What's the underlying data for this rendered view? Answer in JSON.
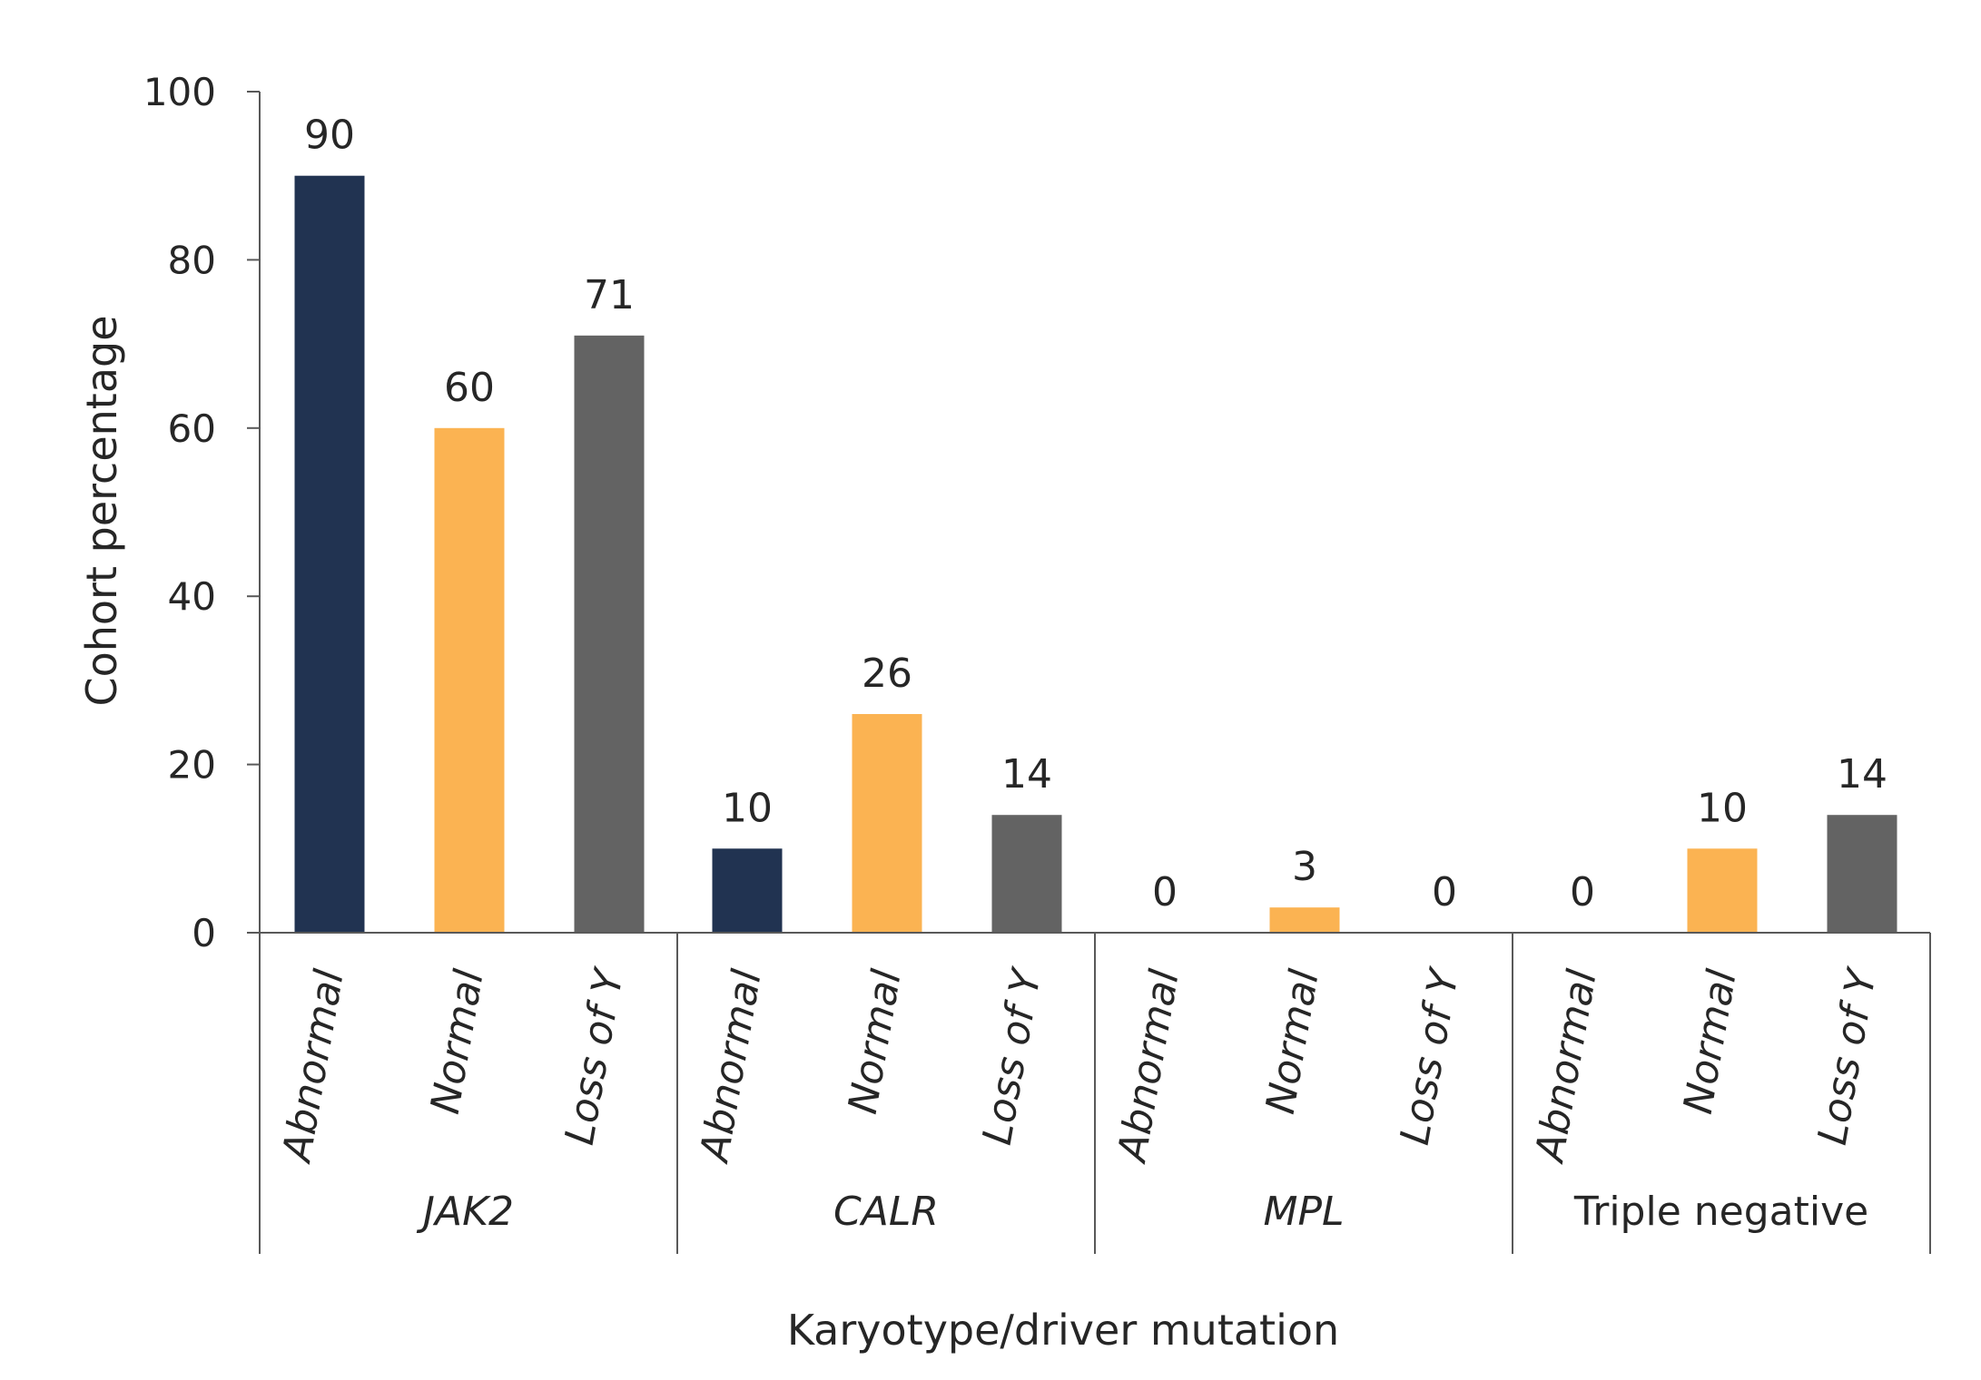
{
  "chart_data": {
    "type": "bar",
    "xlabel": "Karyotype/driver mutation",
    "ylabel": "Cohort percentage",
    "ylim": [
      0,
      100
    ],
    "yticks": [
      0,
      20,
      40,
      60,
      80,
      100
    ],
    "grid": false,
    "legend": "none",
    "colors": {
      "Abnormal": "#213351",
      "Normal": "#fbb352",
      "Loss of Y": "#636363"
    },
    "groups": [
      {
        "name": "JAK2",
        "italic": true,
        "bars": [
          {
            "category": "Abnormal",
            "value": 90
          },
          {
            "category": "Normal",
            "value": 60
          },
          {
            "category": "Loss of Y",
            "value": 71
          }
        ]
      },
      {
        "name": "CALR",
        "italic": true,
        "bars": [
          {
            "category": "Abnormal",
            "value": 10
          },
          {
            "category": "Normal",
            "value": 26
          },
          {
            "category": "Loss of Y",
            "value": 14
          }
        ]
      },
      {
        "name": "MPL",
        "italic": true,
        "bars": [
          {
            "category": "Abnormal",
            "value": 0
          },
          {
            "category": "Normal",
            "value": 3
          },
          {
            "category": "Loss of Y",
            "value": 0
          }
        ]
      },
      {
        "name": "Triple negative",
        "italic": false,
        "bars": [
          {
            "category": "Abnormal",
            "value": 0
          },
          {
            "category": "Normal",
            "value": 10
          },
          {
            "category": "Loss of Y",
            "value": 14
          }
        ]
      }
    ]
  }
}
